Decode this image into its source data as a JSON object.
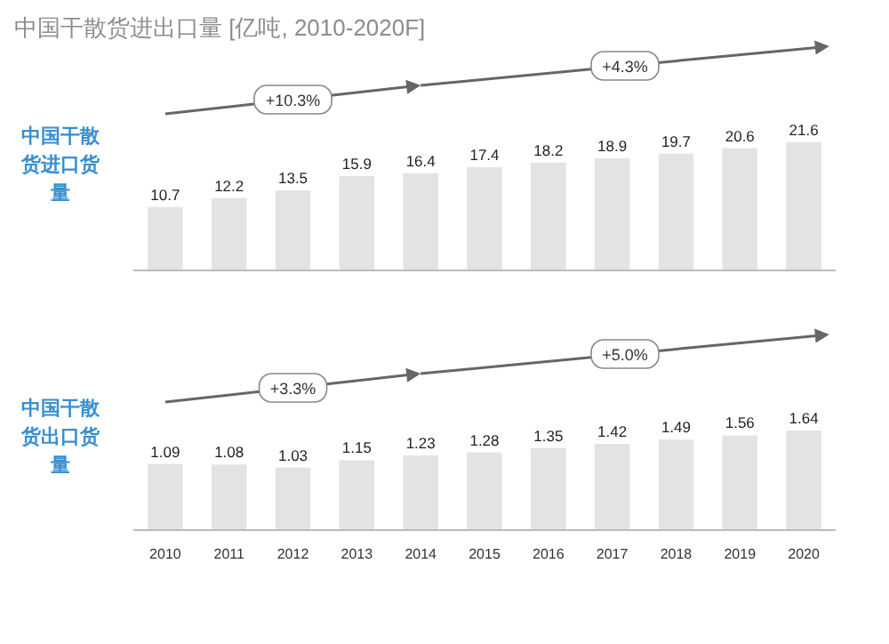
{
  "chart_data": [
    {
      "type": "bar",
      "title": "中国干散货进出口量 [亿吨, 2010-2020F]",
      "ylabel": "中国干散货进口货量",
      "categories": [
        null,
        null,
        null,
        null,
        null,
        null,
        null,
        null,
        null,
        null,
        null
      ],
      "values": [
        10.7,
        12.2,
        13.5,
        15.9,
        16.4,
        17.4,
        18.2,
        18.9,
        19.7,
        20.6,
        21.6
      ],
      "color": "#e3e3e3",
      "data_labels": true,
      "annotations": [
        "+10.3%",
        "+4.3%"
      ]
    },
    {
      "type": "bar",
      "ylabel": "中国干散货出口货量",
      "categories": [
        "2010",
        "2011",
        "2012",
        "2013",
        "2014",
        "2015",
        "2016",
        "2017",
        "2018",
        "2019",
        "2020"
      ],
      "values": [
        1.09,
        1.08,
        1.03,
        1.15,
        1.23,
        1.28,
        1.35,
        1.42,
        1.49,
        1.56,
        1.64
      ],
      "color": "#e3e3e3",
      "data_labels": true,
      "annotations": [
        "+3.3%",
        "+5.0%"
      ]
    }
  ]
}
